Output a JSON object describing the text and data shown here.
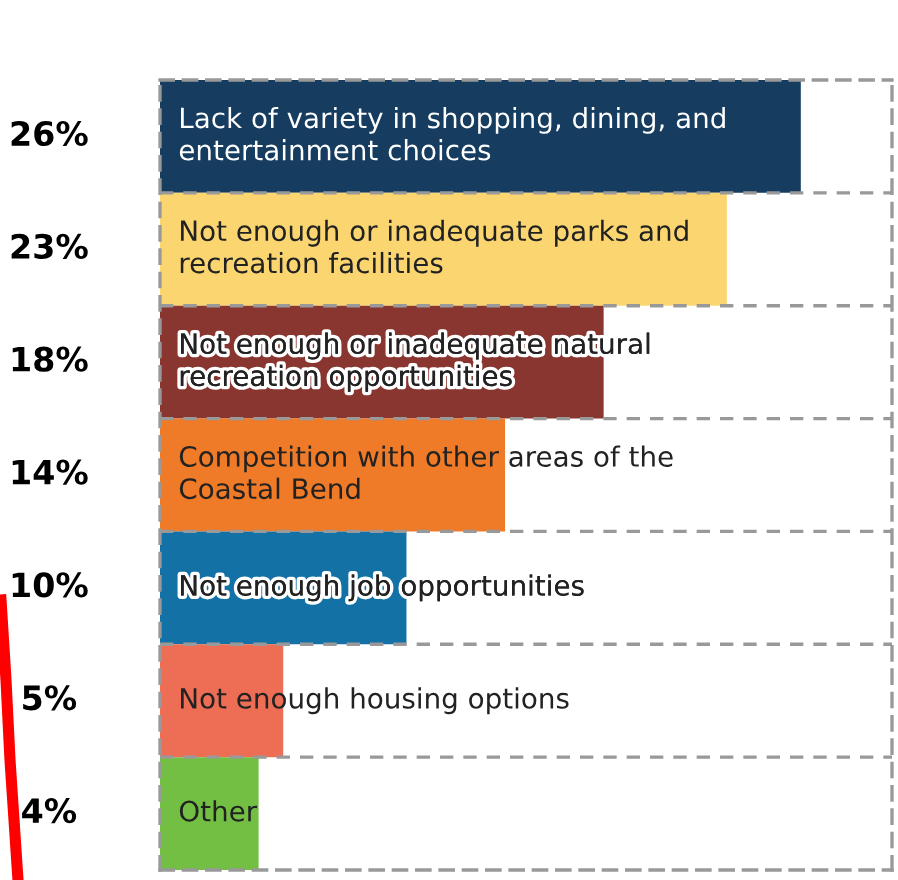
{
  "chart_data": {
    "type": "bar",
    "orientation": "horizontal",
    "categories": [
      "Lack of variety in shopping, dining, and\nentertainment choices",
      "Not enough or inadequate parks and\nrecreation facilities",
      "Not enough or inadequate natural\nrecreation opportunities",
      "Competition with other areas of the\nCoastal Bend",
      "Not enough job opportunities",
      "Not enough housing options",
      "Other"
    ],
    "values": [
      26,
      23,
      18,
      14,
      10,
      5,
      4
    ],
    "value_labels": [
      "26%",
      "23%",
      "18%",
      "14%",
      "10%",
      "5%",
      "4%"
    ],
    "colors": [
      "#163c5f",
      "#fbd670",
      "#8a3630",
      "#ef7a27",
      "#1471a6",
      "#ee6e55",
      "#72bf44"
    ],
    "xlim": [
      0,
      29.7
    ]
  }
}
